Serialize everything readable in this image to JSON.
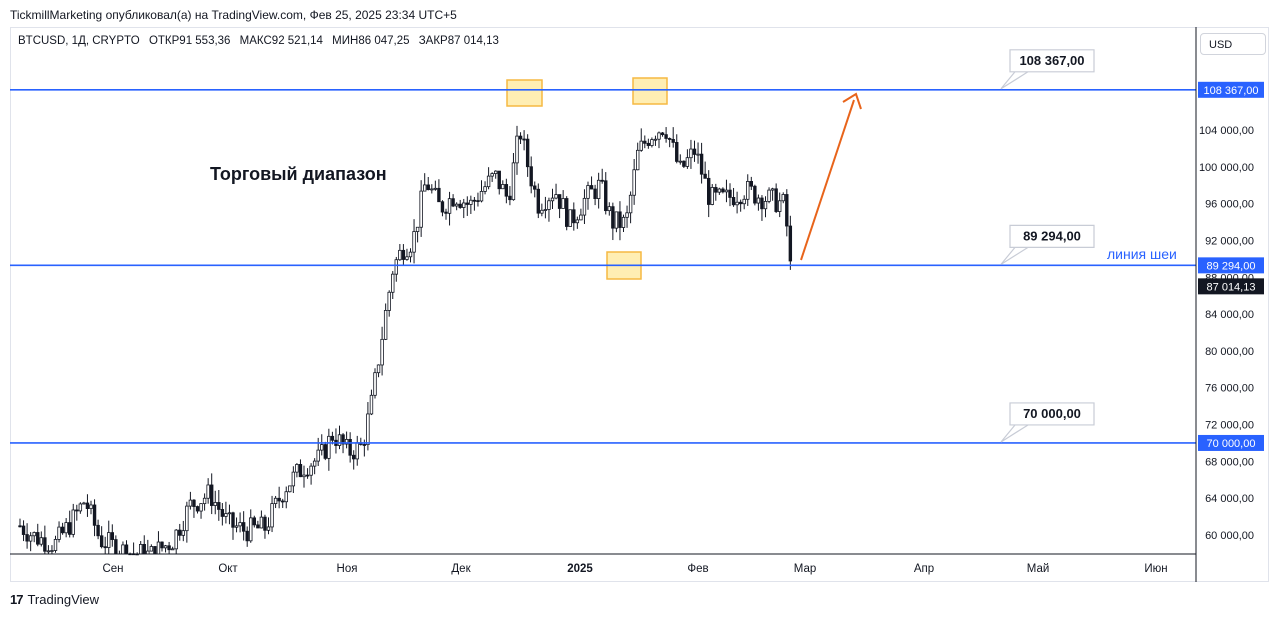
{
  "header": {
    "publisher_line": "TickmillMarketing опубликовал(а) на TradingView.com, Фев 25, 2025 23:34 UTC+5"
  },
  "symbol": {
    "name": "BTCUSD, 1Д, CRYPTO",
    "open_label": "ОТКР",
    "open": "91 553,36",
    "high_label": "МАКС",
    "high": "92 521,14",
    "low_label": "МИН",
    "low": "86 047,25",
    "close_label": "ЗАКР",
    "close": "87 014,13"
  },
  "currency_button": "USD",
  "footer": {
    "logo": "17",
    "brand": "TradingView"
  },
  "chart_data": {
    "type": "candlestick",
    "title": "Торговый диапазон",
    "y_axis": {
      "min": 57000,
      "max": 114000,
      "ticks": [
        "60 000,00",
        "64 000,00",
        "68 000,00",
        "72 000,00",
        "76 000,00",
        "80 000,00",
        "84 000,00",
        "88 000,00",
        "92 000,00",
        "96 000,00",
        "100 000,00",
        "104 000,00"
      ]
    },
    "x_axis": {
      "ticks": [
        "Сен",
        "Окт",
        "Ноя",
        "Дек",
        "2025",
        "Фев",
        "Мар",
        "Апр",
        "Май",
        "Июн"
      ],
      "bold_tick": "2025"
    },
    "horizontal_lines": [
      {
        "value": 108367,
        "label": "108 367,00",
        "axis_label": "108 367,00"
      },
      {
        "value": 89294,
        "label": "89 294,00",
        "axis_label": "89 294,00",
        "annotation": "линия шеи"
      },
      {
        "value": 70000,
        "label": "70 000,00",
        "axis_label": "70 000,00"
      }
    ],
    "last_price": {
      "value": 87014.13,
      "label": "87 014,13"
    },
    "highlights": [
      "top-1",
      "top-2",
      "neckline-low"
    ],
    "arrow": "up-projection",
    "colors": {
      "line": "#2962ff",
      "candle": "#131722",
      "highlight_fill": "#ffe89a",
      "highlight_border": "#f5b942",
      "arrow": "#e8641b"
    }
  }
}
